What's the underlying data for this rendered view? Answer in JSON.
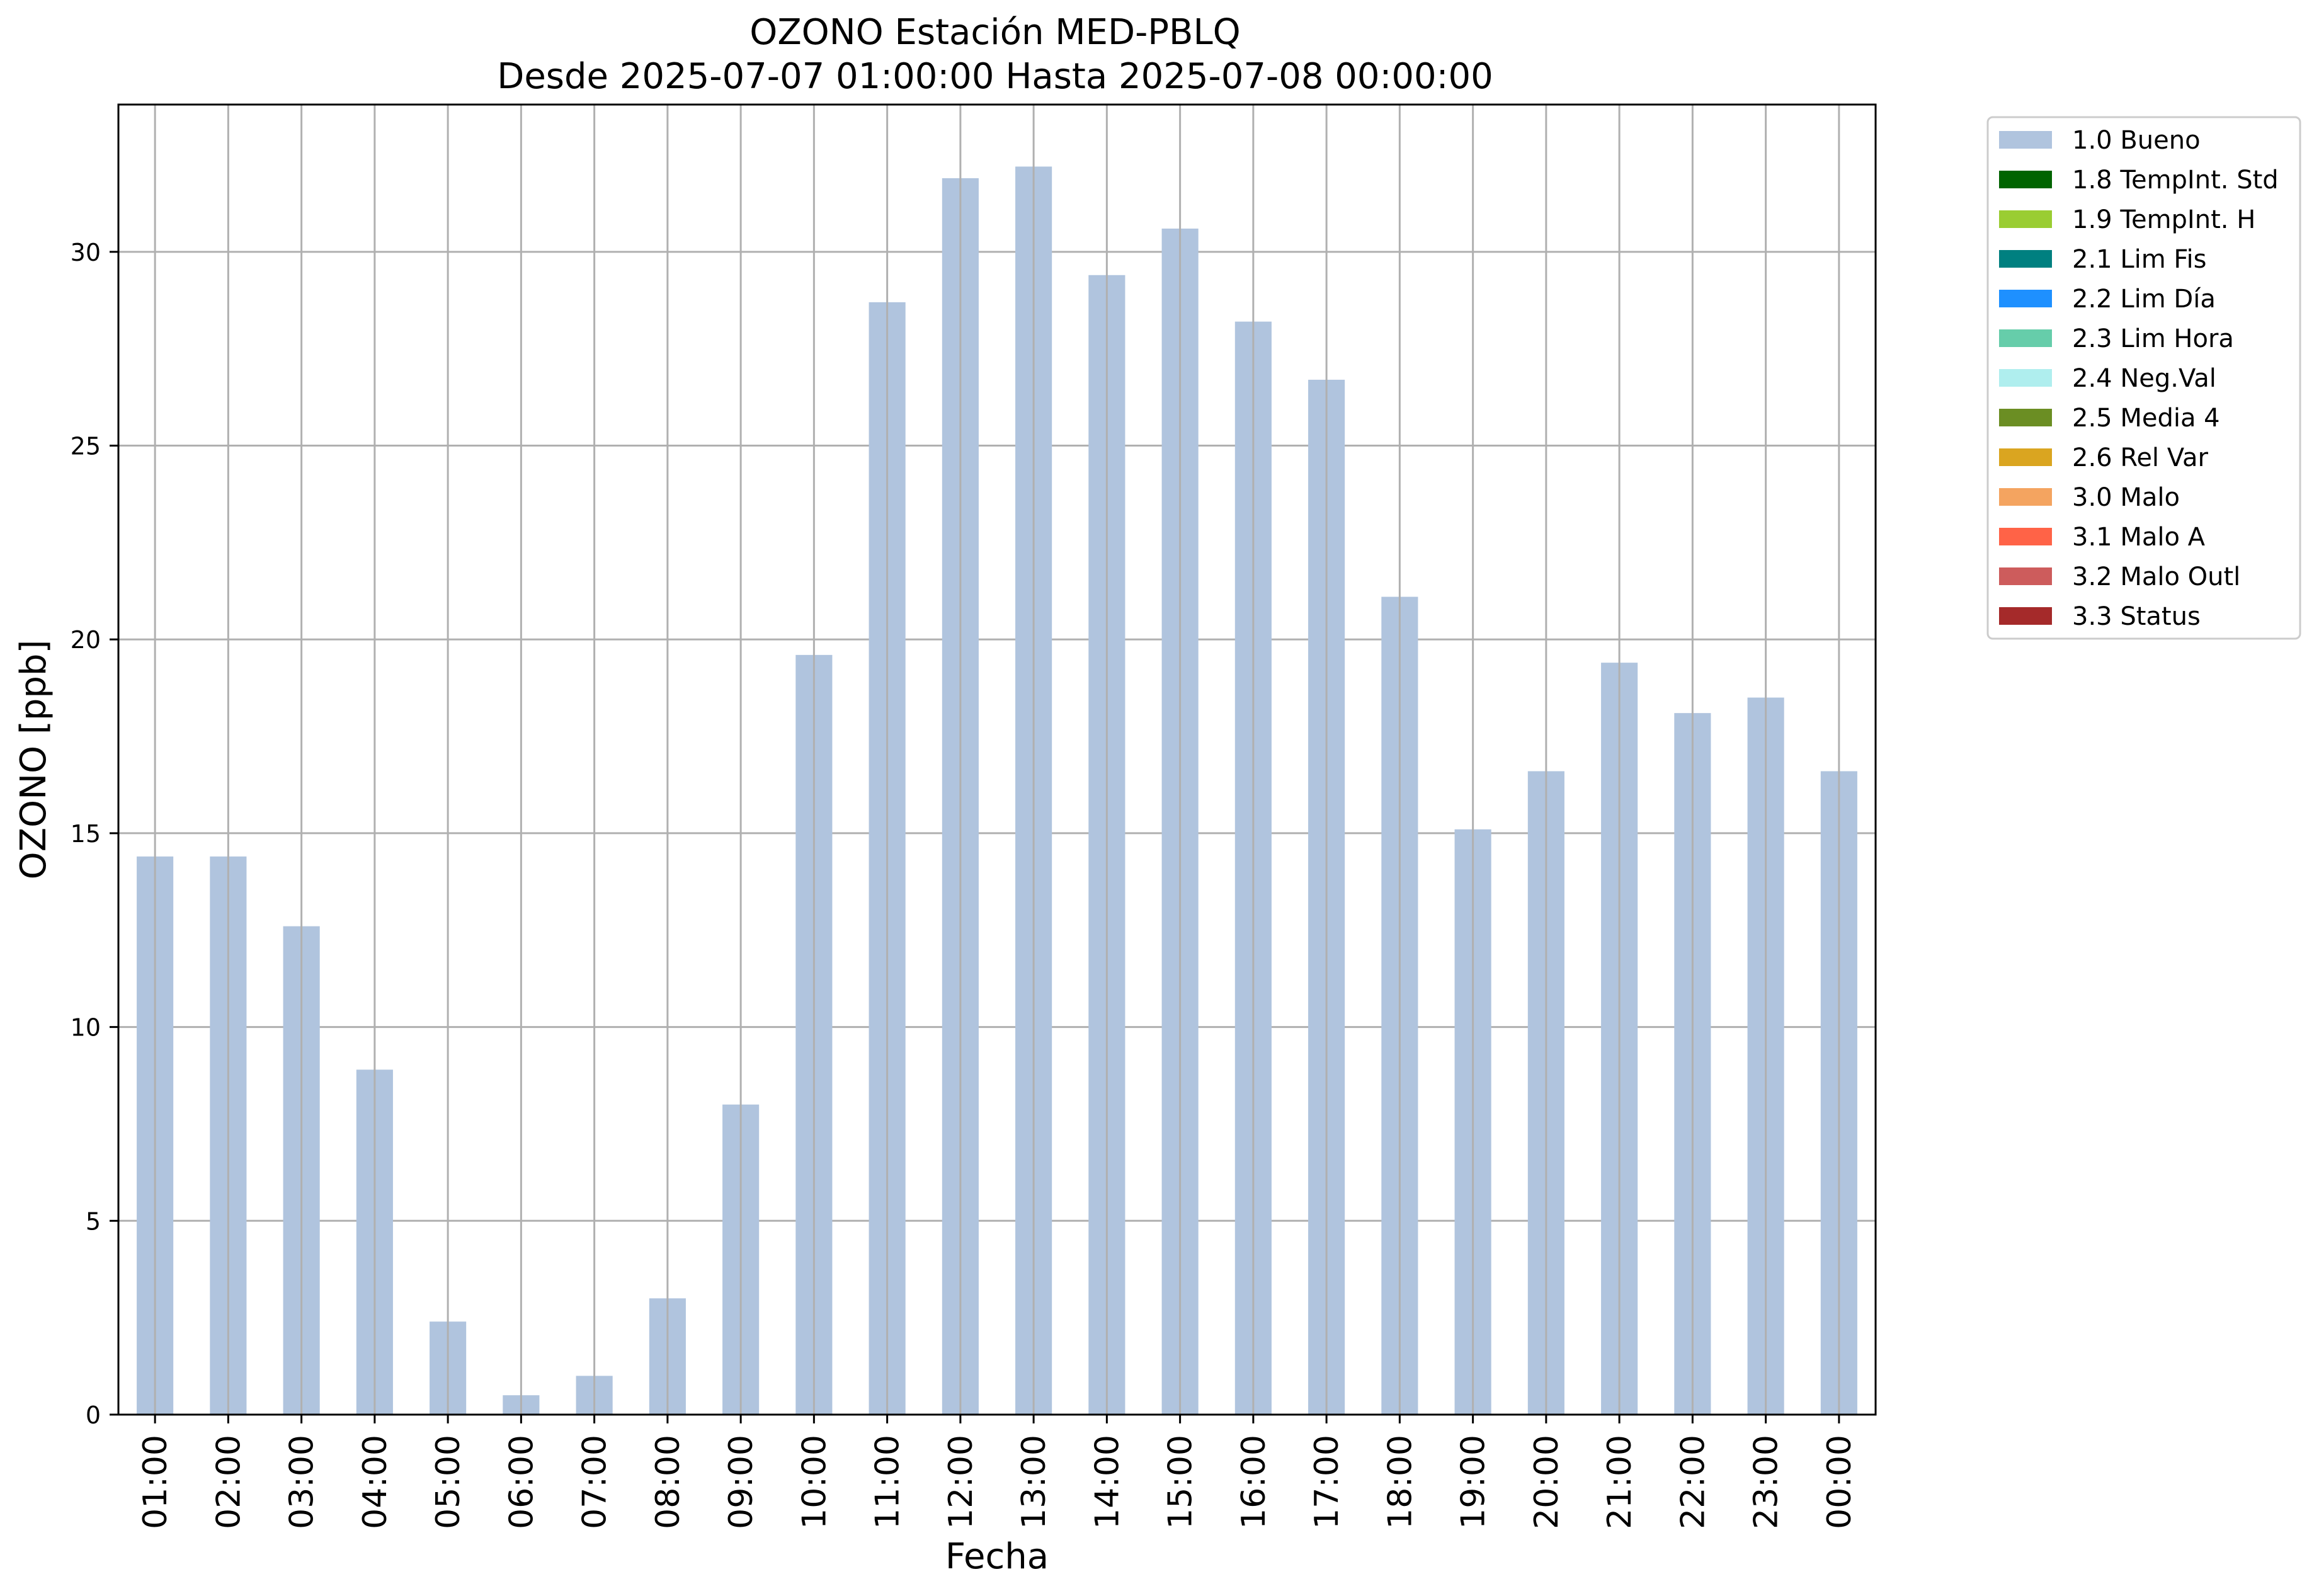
{
  "chart_data": {
    "type": "bar",
    "title": "OZONO Estación MED-PBLQ",
    "subtitle": "Desde 2025-07-07 01:00:00 Hasta 2025-07-08 00:00:00",
    "xlabel": "Fecha",
    "ylabel": "OZONO [ppb]",
    "ylim": [
      0,
      33.8
    ],
    "yticks": [
      0,
      5,
      10,
      15,
      20,
      25,
      30
    ],
    "grid": true,
    "legend_position": "outside-top-right",
    "categories": [
      "01:00",
      "02:00",
      "03:00",
      "04:00",
      "05:00",
      "06:00",
      "07:00",
      "08:00",
      "09:00",
      "10:00",
      "11:00",
      "12:00",
      "13:00",
      "14:00",
      "15:00",
      "16:00",
      "17:00",
      "18:00",
      "19:00",
      "20:00",
      "21:00",
      "22:00",
      "23:00",
      "00:00"
    ],
    "series": [
      {
        "name": "1.0 Bueno",
        "color": "#b0c4de",
        "values": [
          14.4,
          14.4,
          12.6,
          8.9,
          2.4,
          0.5,
          1.0,
          3.0,
          8.0,
          19.6,
          28.7,
          31.9,
          32.2,
          29.4,
          30.6,
          28.2,
          26.7,
          21.1,
          15.1,
          16.6,
          19.4,
          18.1,
          18.5,
          16.6
        ]
      }
    ],
    "legend": [
      {
        "label": "1.0 Bueno",
        "color": "#b0c4de"
      },
      {
        "label": "1.8 TempInt. Std",
        "color": "#006400"
      },
      {
        "label": "1.9 TempInt. H",
        "color": "#9acd32"
      },
      {
        "label": "2.1 Lim Fis",
        "color": "#008080"
      },
      {
        "label": "2.2 Lim Día",
        "color": "#1e90ff"
      },
      {
        "label": "2.3 Lim Hora",
        "color": "#66cdaa"
      },
      {
        "label": "2.4 Neg.Val",
        "color": "#afeeee"
      },
      {
        "label": "2.5 Media 4",
        "color": "#6b8e23"
      },
      {
        "label": "2.6 Rel Var",
        "color": "#daa520"
      },
      {
        "label": "3.0 Malo",
        "color": "#f4a460"
      },
      {
        "label": "3.1 Malo A",
        "color": "#ff6347"
      },
      {
        "label": "3.2 Malo Outl",
        "color": "#cd5c5c"
      },
      {
        "label": "3.3 Status",
        "color": "#a52a2a"
      }
    ]
  }
}
